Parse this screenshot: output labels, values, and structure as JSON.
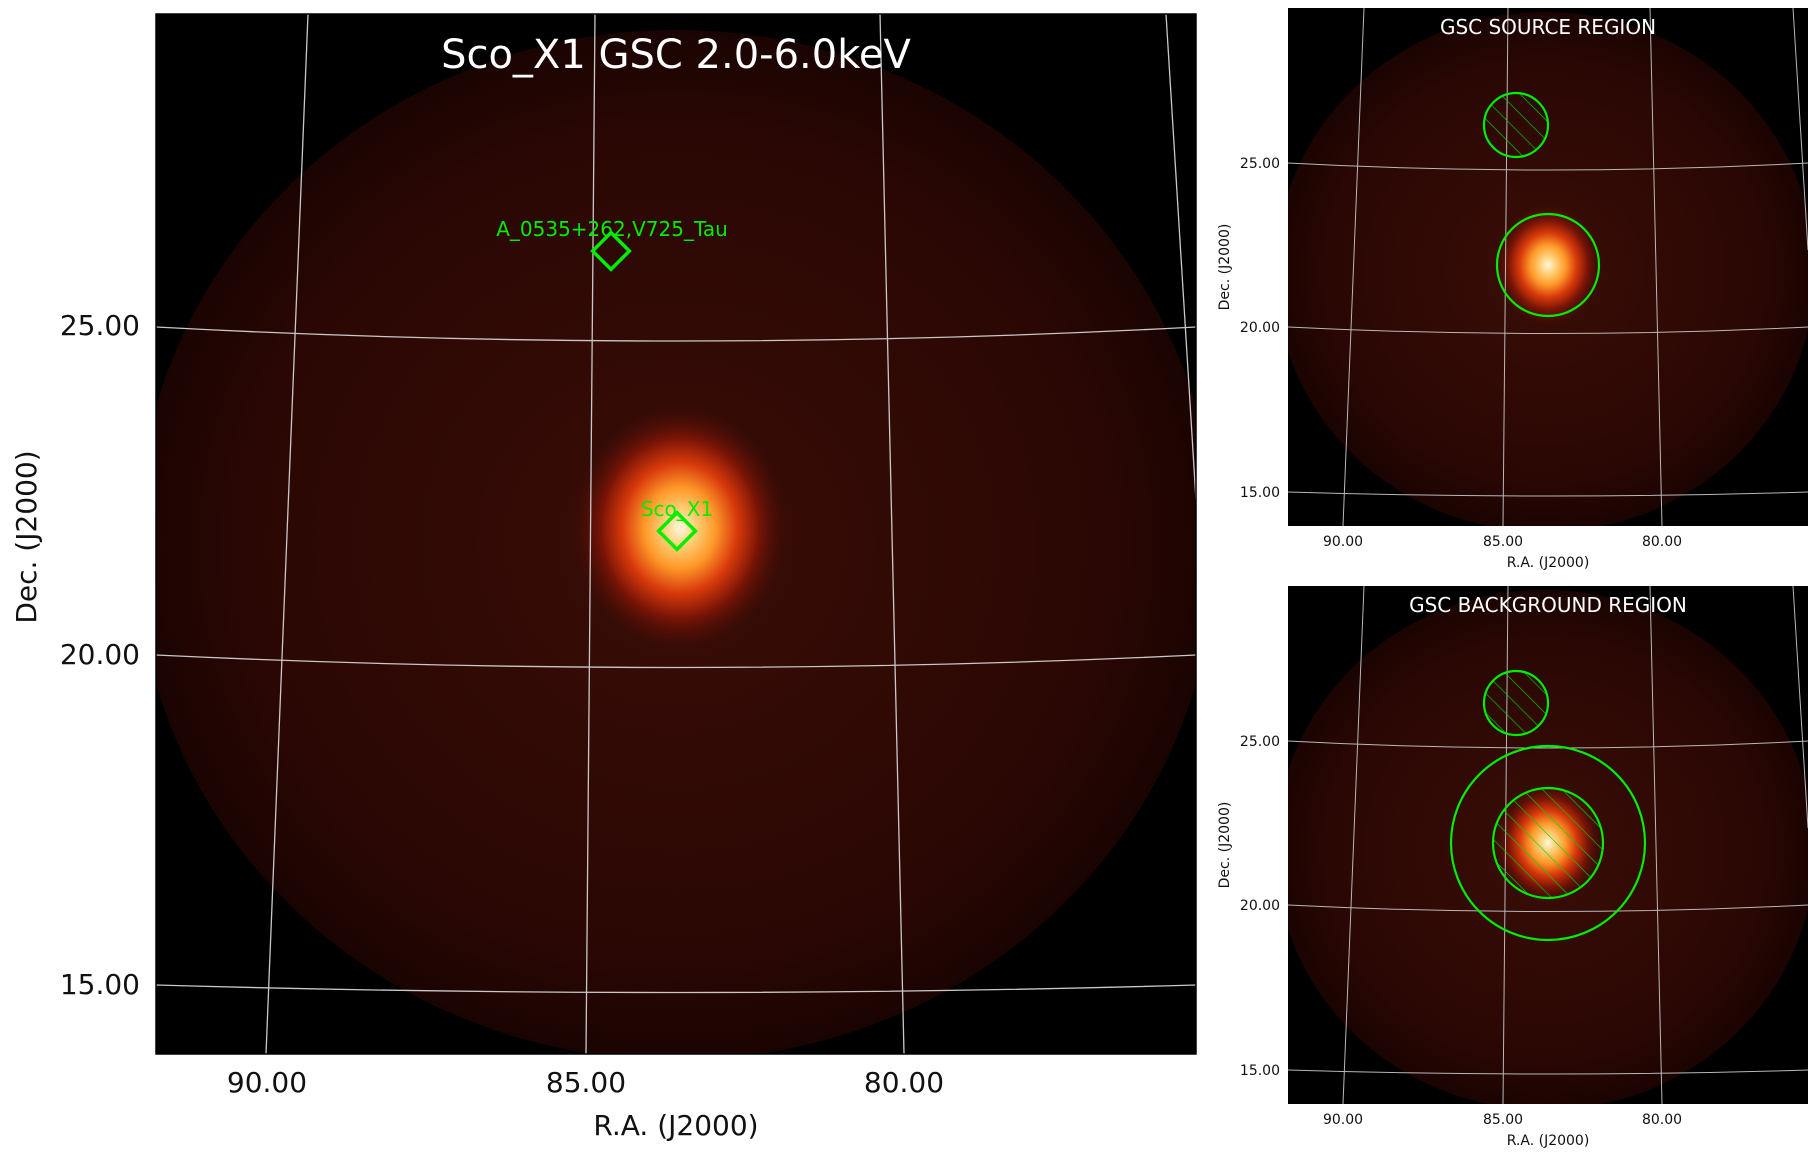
{
  "main_panel": {
    "title": "Sco_X1 GSC 2.0-6.0keV",
    "xlabel": "R.A. (J2000)",
    "ylabel": "Dec. (J2000)",
    "x_ticks": [
      "90.00",
      "85.00",
      "80.00"
    ],
    "y_ticks": [
      "25.00",
      "20.00",
      "15.00"
    ],
    "markers": [
      {
        "label": "A_0535+262,V725_Tau",
        "ra": 84.5,
        "dec": 26.2
      },
      {
        "label": "Sco_X1",
        "ra": 83.6,
        "dec": 21.9
      }
    ]
  },
  "source_panel": {
    "title": "GSC SOURCE REGION",
    "xlabel": "R.A. (J2000)",
    "ylabel": "Dec. (J2000)",
    "x_ticks": [
      "90.00",
      "85.00",
      "80.00"
    ],
    "y_ticks": [
      "25.00",
      "20.00",
      "15.00"
    ]
  },
  "background_panel": {
    "title": "GSC BACKGROUND REGION",
    "xlabel": "R.A. (J2000)",
    "ylabel": "Dec. (J2000)",
    "x_ticks": [
      "90.00",
      "85.00",
      "80.00"
    ],
    "y_ticks": [
      "25.00",
      "20.00",
      "15.00"
    ]
  },
  "colors": {
    "background": "#000000",
    "region": "#00ee00",
    "grid": "#c8c8c8",
    "source_core": "#fff4d0"
  }
}
